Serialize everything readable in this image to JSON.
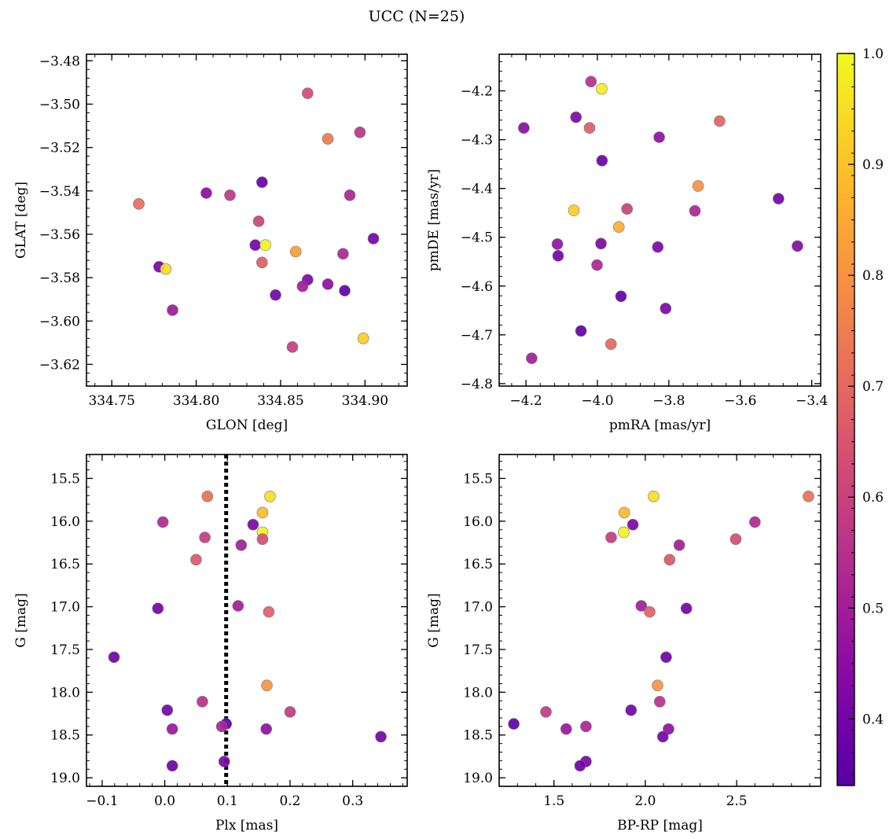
{
  "title": "UCC (N=25)",
  "colorbar": {
    "range": [
      0.34,
      1.0
    ],
    "ticks": [
      "0.4",
      "0.5",
      "0.6",
      "0.7",
      "0.8",
      "0.9",
      "1.0"
    ],
    "colormap": "plasma"
  },
  "chart_data": [
    {
      "type": "scatter",
      "xlabel": "GLON [deg]",
      "ylabel": "GLAT [deg]",
      "xlim": [
        334.735,
        334.925
      ],
      "ylim": [
        -3.63,
        -3.477
      ],
      "y_inverted": false,
      "xticks": [
        "334.75",
        "334.80",
        "334.85",
        "334.90"
      ],
      "yticks": [
        "-3.48",
        "-3.50",
        "-3.52",
        "-3.54",
        "-3.56",
        "-3.58",
        "-3.60",
        "-3.62"
      ],
      "points": [
        {
          "x": 334.866,
          "y": -3.495,
          "c": 0.62
        },
        {
          "x": 334.878,
          "y": -3.516,
          "c": 0.74
        },
        {
          "x": 334.897,
          "y": -3.513,
          "c": 0.56
        },
        {
          "x": 334.839,
          "y": -3.536,
          "c": 0.38
        },
        {
          "x": 334.806,
          "y": -3.541,
          "c": 0.45
        },
        {
          "x": 334.82,
          "y": -3.542,
          "c": 0.57
        },
        {
          "x": 334.891,
          "y": -3.542,
          "c": 0.52
        },
        {
          "x": 334.766,
          "y": -3.546,
          "c": 0.71
        },
        {
          "x": 334.837,
          "y": -3.554,
          "c": 0.6
        },
        {
          "x": 334.905,
          "y": -3.562,
          "c": 0.4
        },
        {
          "x": 334.835,
          "y": -3.565,
          "c": 0.4
        },
        {
          "x": 334.841,
          "y": -3.565,
          "c": 0.99
        },
        {
          "x": 334.859,
          "y": -3.568,
          "c": 0.82
        },
        {
          "x": 334.887,
          "y": -3.569,
          "c": 0.52
        },
        {
          "x": 334.839,
          "y": -3.573,
          "c": 0.67
        },
        {
          "x": 334.778,
          "y": -3.575,
          "c": 0.4
        },
        {
          "x": 334.782,
          "y": -3.576,
          "c": 0.95
        },
        {
          "x": 334.866,
          "y": -3.581,
          "c": 0.42
        },
        {
          "x": 334.878,
          "y": -3.583,
          "c": 0.46
        },
        {
          "x": 334.863,
          "y": -3.584,
          "c": 0.5
        },
        {
          "x": 334.888,
          "y": -3.586,
          "c": 0.37
        },
        {
          "x": 334.847,
          "y": -3.588,
          "c": 0.4
        },
        {
          "x": 334.786,
          "y": -3.595,
          "c": 0.49
        },
        {
          "x": 334.899,
          "y": -3.608,
          "c": 0.92
        },
        {
          "x": 334.857,
          "y": -3.612,
          "c": 0.59
        }
      ]
    },
    {
      "type": "scatter",
      "xlabel": "pmRA [mas/yr]",
      "ylabel": "pmDE [mas/yr]",
      "xlim": [
        -4.275,
        -3.375
      ],
      "ylim": [
        -4.805,
        -4.125
      ],
      "y_inverted": false,
      "xticks": [
        "-4.2",
        "-4.0",
        "-3.8",
        "-3.6",
        "-3.4"
      ],
      "yticks": [
        "-4.2",
        "-4.3",
        "-4.4",
        "-4.5",
        "-4.6",
        "-4.7",
        "-4.8"
      ],
      "points": [
        {
          "x": -4.018,
          "y": -4.181,
          "c": 0.55
        },
        {
          "x": -3.988,
          "y": -4.196,
          "c": 0.98
        },
        {
          "x": -4.06,
          "y": -4.254,
          "c": 0.42
        },
        {
          "x": -4.206,
          "y": -4.276,
          "c": 0.45
        },
        {
          "x": -4.022,
          "y": -4.276,
          "c": 0.67
        },
        {
          "x": -3.658,
          "y": -4.262,
          "c": 0.69
        },
        {
          "x": -3.827,
          "y": -4.295,
          "c": 0.46
        },
        {
          "x": -3.987,
          "y": -4.343,
          "c": 0.38
        },
        {
          "x": -3.718,
          "y": -4.395,
          "c": 0.8
        },
        {
          "x": -3.493,
          "y": -4.421,
          "c": 0.4
        },
        {
          "x": -4.066,
          "y": -4.445,
          "c": 0.92
        },
        {
          "x": -3.917,
          "y": -4.442,
          "c": 0.6
        },
        {
          "x": -3.727,
          "y": -4.446,
          "c": 0.52
        },
        {
          "x": -3.94,
          "y": -4.479,
          "c": 0.86
        },
        {
          "x": -4.112,
          "y": -4.514,
          "c": 0.47
        },
        {
          "x": -3.99,
          "y": -4.513,
          "c": 0.42
        },
        {
          "x": -3.831,
          "y": -4.52,
          "c": 0.42
        },
        {
          "x": -3.44,
          "y": -4.518,
          "c": 0.44
        },
        {
          "x": -4.11,
          "y": -4.538,
          "c": 0.4
        },
        {
          "x": -4.001,
          "y": -4.557,
          "c": 0.52
        },
        {
          "x": -3.934,
          "y": -4.621,
          "c": 0.37
        },
        {
          "x": -3.809,
          "y": -4.646,
          "c": 0.42
        },
        {
          "x": -4.046,
          "y": -4.692,
          "c": 0.37
        },
        {
          "x": -3.962,
          "y": -4.719,
          "c": 0.7
        },
        {
          "x": -4.184,
          "y": -4.748,
          "c": 0.5
        }
      ]
    },
    {
      "type": "scatter",
      "xlabel": "Plx [mas]",
      "ylabel": "G [mag]",
      "xlim": [
        -0.125,
        0.387
      ],
      "ylim": [
        15.22,
        19.1
      ],
      "y_inverted": true,
      "xticks": [
        "-0.1",
        "0.0",
        "0.1",
        "0.2",
        "0.3"
      ],
      "yticks": [
        "15.5",
        "16.0",
        "16.5",
        "17.0",
        "17.5",
        "18.0",
        "18.5",
        "19.0"
      ],
      "vline": {
        "x": 0.098,
        "style": "dotted"
      },
      "points": [
        {
          "x": 0.068,
          "y": 15.71,
          "c": 0.72
        },
        {
          "x": 0.168,
          "y": 15.71,
          "c": 0.95
        },
        {
          "x": 0.156,
          "y": 15.9,
          "c": 0.88
        },
        {
          "x": -0.003,
          "y": 16.01,
          "c": 0.53
        },
        {
          "x": 0.141,
          "y": 16.04,
          "c": 0.42
        },
        {
          "x": 0.156,
          "y": 16.13,
          "c": 0.99
        },
        {
          "x": 0.064,
          "y": 16.19,
          "c": 0.58
        },
        {
          "x": 0.156,
          "y": 16.21,
          "c": 0.63
        },
        {
          "x": 0.122,
          "y": 16.28,
          "c": 0.5
        },
        {
          "x": 0.05,
          "y": 16.45,
          "c": 0.66
        },
        {
          "x": 0.117,
          "y": 16.99,
          "c": 0.5
        },
        {
          "x": -0.011,
          "y": 17.02,
          "c": 0.4
        },
        {
          "x": 0.166,
          "y": 17.06,
          "c": 0.68
        },
        {
          "x": -0.081,
          "y": 17.59,
          "c": 0.39
        },
        {
          "x": 0.163,
          "y": 17.92,
          "c": 0.8
        },
        {
          "x": 0.06,
          "y": 18.11,
          "c": 0.55
        },
        {
          "x": 0.004,
          "y": 18.21,
          "c": 0.4
        },
        {
          "x": 0.2,
          "y": 18.23,
          "c": 0.58
        },
        {
          "x": 0.098,
          "y": 18.37,
          "c": 0.36
        },
        {
          "x": 0.091,
          "y": 18.4,
          "c": 0.52
        },
        {
          "x": 0.012,
          "y": 18.43,
          "c": 0.48
        },
        {
          "x": 0.162,
          "y": 18.43,
          "c": 0.46
        },
        {
          "x": 0.345,
          "y": 18.52,
          "c": 0.4
        },
        {
          "x": 0.095,
          "y": 18.81,
          "c": 0.41
        },
        {
          "x": 0.012,
          "y": 18.86,
          "c": 0.39
        }
      ]
    },
    {
      "type": "scatter",
      "xlabel": "BP-RP [mag]",
      "ylabel": "G [mag]",
      "xlim": [
        1.2,
        2.96
      ],
      "ylim": [
        15.22,
        19.1
      ],
      "y_inverted": true,
      "xticks": [
        "1.5",
        "2.0",
        "2.5"
      ],
      "yticks": [
        "15.5",
        "16.0",
        "16.5",
        "17.0",
        "17.5",
        "18.0",
        "18.5",
        "19.0"
      ],
      "points": [
        {
          "x": 2.045,
          "y": 15.71,
          "c": 0.95
        },
        {
          "x": 2.893,
          "y": 15.71,
          "c": 0.72
        },
        {
          "x": 1.885,
          "y": 15.9,
          "c": 0.88
        },
        {
          "x": 2.6,
          "y": 16.01,
          "c": 0.53
        },
        {
          "x": 1.932,
          "y": 16.04,
          "c": 0.42
        },
        {
          "x": 1.882,
          "y": 16.13,
          "c": 0.99
        },
        {
          "x": 1.813,
          "y": 16.19,
          "c": 0.58
        },
        {
          "x": 2.495,
          "y": 16.21,
          "c": 0.63
        },
        {
          "x": 2.186,
          "y": 16.28,
          "c": 0.5
        },
        {
          "x": 2.133,
          "y": 16.45,
          "c": 0.66
        },
        {
          "x": 1.978,
          "y": 16.99,
          "c": 0.5
        },
        {
          "x": 2.225,
          "y": 17.02,
          "c": 0.4
        },
        {
          "x": 2.024,
          "y": 17.06,
          "c": 0.68
        },
        {
          "x": 2.114,
          "y": 17.59,
          "c": 0.39
        },
        {
          "x": 2.067,
          "y": 17.92,
          "c": 0.8
        },
        {
          "x": 2.079,
          "y": 18.11,
          "c": 0.55
        },
        {
          "x": 1.922,
          "y": 18.21,
          "c": 0.4
        },
        {
          "x": 1.456,
          "y": 18.23,
          "c": 0.58
        },
        {
          "x": 1.28,
          "y": 18.37,
          "c": 0.36
        },
        {
          "x": 1.675,
          "y": 18.4,
          "c": 0.52
        },
        {
          "x": 1.567,
          "y": 18.43,
          "c": 0.48
        },
        {
          "x": 2.127,
          "y": 18.43,
          "c": 0.46
        },
        {
          "x": 2.096,
          "y": 18.52,
          "c": 0.4
        },
        {
          "x": 1.675,
          "y": 18.81,
          "c": 0.41
        },
        {
          "x": 1.643,
          "y": 18.86,
          "c": 0.39
        }
      ]
    }
  ]
}
